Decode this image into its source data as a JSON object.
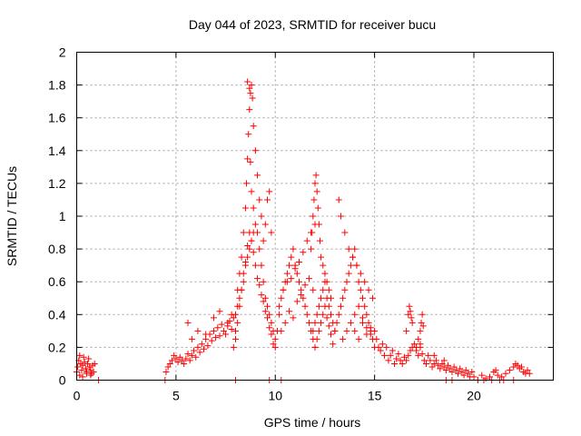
{
  "chart_data": {
    "type": "scatter",
    "title": "Day 044 of 2023, SRMTID for receiver bucu",
    "xlabel": "GPS time / hours",
    "ylabel": "SRMTID / TECUs",
    "xlim": [
      0,
      24
    ],
    "ylim": [
      0,
      2
    ],
    "xticks": [
      0,
      5,
      10,
      15,
      20
    ],
    "xtick_labels": [
      "0",
      "5",
      "10",
      "15",
      "20"
    ],
    "yticks": [
      0,
      0.2,
      0.4,
      0.6,
      0.8,
      1.0,
      1.2,
      1.4,
      1.6,
      1.8,
      2.0
    ],
    "ytick_labels": [
      "0",
      "0.2",
      "0.4",
      "0.6",
      "0.8",
      "1",
      "1.2",
      "1.4",
      "1.6",
      "1.8",
      "2"
    ],
    "grid": true,
    "marker": "plus",
    "color": "#ff0000",
    "series": [
      {
        "name": "SRMTID",
        "x": [
          0.0,
          0.05,
          0.1,
          0.15,
          0.2,
          0.25,
          0.3,
          0.35,
          0.4,
          0.45,
          0.5,
          0.55,
          0.6,
          0.65,
          0.7,
          0.75,
          0.8,
          0.85,
          0.9,
          0.15,
          0.3,
          0.5,
          0.7,
          1.1,
          4.45,
          4.5,
          4.6,
          4.7,
          4.8,
          4.9,
          5.0,
          5.1,
          5.2,
          5.3,
          5.4,
          5.5,
          5.6,
          5.7,
          5.8,
          5.9,
          6.0,
          6.1,
          6.2,
          6.3,
          6.4,
          6.5,
          6.6,
          6.7,
          6.8,
          6.9,
          7.0,
          7.1,
          7.2,
          7.3,
          7.4,
          7.5,
          7.6,
          7.7,
          7.8,
          7.9,
          5.6,
          5.8,
          6.1,
          6.5,
          6.9,
          7.2,
          7.6,
          7.8,
          7.9,
          8.0,
          8.1,
          8.2,
          8.3,
          8.4,
          8.5,
          8.6,
          8.7,
          8.8,
          8.9,
          9.0,
          9.1,
          9.2,
          9.3,
          9.4,
          9.5,
          9.6,
          9.7,
          9.8,
          9.9,
          10.0,
          8.0,
          8.1,
          8.2,
          8.3,
          8.4,
          8.5,
          8.55,
          8.6,
          8.65,
          8.7,
          8.75,
          8.8,
          8.85,
          8.9,
          9.0,
          9.1,
          9.2,
          9.3,
          9.4,
          9.5,
          9.6,
          9.7,
          9.8,
          8.0,
          8.1,
          8.2,
          8.3,
          8.4,
          8.5,
          8.6,
          8.7,
          8.8,
          8.9,
          9.0,
          9.1,
          9.2,
          9.3,
          9.4,
          9.5,
          9.6,
          9.7,
          9.8,
          9.9,
          8.6,
          8.7,
          8.75,
          8.8,
          8.9,
          10.0,
          10.1,
          10.2,
          10.3,
          10.4,
          10.5,
          10.6,
          10.7,
          10.8,
          10.9,
          11.0,
          11.1,
          11.2,
          11.3,
          11.4,
          11.5,
          11.6,
          11.7,
          11.8,
          11.9,
          12.0,
          10.2,
          10.4,
          10.6,
          10.8,
          11.0,
          11.2,
          11.4,
          11.6,
          11.8,
          12.0,
          10.3,
          10.5,
          10.7,
          10.9,
          11.1,
          11.3,
          11.5,
          11.7,
          11.9,
          11.8,
          11.85,
          11.9,
          11.95,
          12.0,
          12.05,
          12.1,
          12.15,
          12.2,
          12.25,
          12.3,
          12.4,
          12.5,
          12.6,
          12.7,
          12.8,
          11.9,
          12.0,
          12.1,
          12.2,
          12.3,
          12.4,
          12.5,
          12.6,
          12.7,
          12.8,
          12.9,
          13.0,
          12.0,
          12.1,
          12.2,
          12.3,
          12.4,
          12.5,
          12.6,
          12.7,
          12.8,
          12.9,
          13.0,
          13.1,
          13.2,
          13.3,
          13.4,
          13.5,
          13.6,
          13.7,
          13.8,
          13.9,
          14.0,
          14.1,
          14.2,
          14.3,
          14.4,
          14.5,
          14.6,
          14.7,
          14.8,
          14.9,
          15.0,
          13.2,
          13.3,
          13.5,
          13.7,
          13.9,
          14.1,
          14.3,
          14.5,
          14.7,
          14.9,
          13.4,
          13.6,
          13.8,
          14.0,
          14.2,
          14.4,
          14.6,
          14.8,
          14.0,
          14.2,
          14.4,
          14.6,
          14.8,
          15.0,
          15.1,
          15.2,
          15.3,
          15.4,
          15.5,
          15.6,
          15.7,
          15.8,
          15.9,
          16.0,
          16.1,
          16.2,
          16.3,
          16.4,
          16.5,
          16.6,
          16.7,
          16.8,
          16.9,
          17.0,
          17.1,
          17.2,
          17.3,
          17.4,
          17.5,
          17.6,
          17.7,
          17.8,
          17.9,
          18.0,
          18.1,
          18.2,
          18.3,
          18.4,
          18.5,
          18.6,
          18.7,
          18.8,
          18.9,
          19.0,
          19.1,
          19.2,
          19.3,
          19.4,
          19.5,
          19.6,
          19.7,
          19.8,
          19.9,
          16.6,
          16.7,
          16.75,
          16.8,
          16.85,
          16.9,
          17.3,
          17.35,
          17.4,
          17.45,
          17.1,
          17.2,
          17.3,
          18.0,
          18.5,
          20.0,
          20.2,
          20.4,
          20.6,
          20.8,
          21.0,
          21.1,
          21.2,
          21.4,
          21.6,
          21.8,
          22.0,
          22.1,
          22.2,
          22.3,
          22.4,
          22.5,
          22.6,
          22.7,
          22.8,
          8.0,
          9.7,
          10.3,
          18.6,
          18.9,
          20.2,
          20.5,
          20.9,
          21.3,
          21.5,
          22.0
        ],
        "y": [
          0.05,
          0.08,
          0.12,
          0.15,
          0.1,
          0.06,
          0.09,
          0.14,
          0.11,
          0.07,
          0.05,
          0.1,
          0.13,
          0.08,
          0.06,
          0.04,
          0.09,
          0.05,
          0.1,
          0.03,
          0.02,
          0.04,
          0.03,
          0.0,
          0.0,
          0.05,
          0.08,
          0.1,
          0.12,
          0.15,
          0.13,
          0.11,
          0.14,
          0.12,
          0.1,
          0.13,
          0.16,
          0.12,
          0.15,
          0.18,
          0.14,
          0.2,
          0.17,
          0.22,
          0.19,
          0.25,
          0.21,
          0.28,
          0.24,
          0.3,
          0.26,
          0.32,
          0.27,
          0.34,
          0.3,
          0.28,
          0.33,
          0.36,
          0.31,
          0.38,
          0.35,
          0.25,
          0.3,
          0.28,
          0.38,
          0.42,
          0.35,
          0.4,
          0.2,
          0.3,
          0.45,
          0.5,
          0.55,
          0.6,
          0.7,
          0.75,
          0.8,
          0.85,
          0.9,
          0.95,
          0.9,
          0.8,
          0.7,
          0.6,
          0.5,
          0.45,
          0.4,
          0.35,
          0.3,
          0.25,
          0.4,
          0.55,
          0.65,
          0.75,
          0.9,
          1.05,
          1.2,
          1.35,
          1.5,
          1.65,
          1.75,
          1.8,
          1.72,
          1.55,
          1.4,
          1.25,
          1.1,
          1.0,
          0.85,
          0.95,
          1.1,
          1.15,
          0.9,
          0.25,
          0.35,
          0.45,
          0.55,
          0.65,
          0.72,
          0.82,
          0.9,
          0.85,
          0.78,
          0.7,
          0.62,
          0.58,
          0.52,
          0.48,
          0.42,
          0.38,
          0.32,
          0.28,
          0.22,
          1.82,
          1.78,
          1.33,
          1.15,
          1.05,
          0.2,
          0.3,
          0.4,
          0.5,
          0.55,
          0.6,
          0.65,
          0.7,
          0.75,
          0.8,
          0.7,
          0.65,
          0.6,
          0.55,
          0.5,
          0.45,
          0.4,
          0.35,
          0.3,
          0.25,
          0.2,
          0.45,
          0.55,
          0.6,
          0.62,
          0.68,
          0.72,
          0.78,
          0.85,
          0.9,
          0.95,
          0.3,
          0.35,
          0.42,
          0.38,
          0.48,
          0.52,
          0.58,
          0.62,
          0.55,
          0.8,
          0.9,
          1.0,
          1.1,
          1.2,
          1.25,
          1.15,
          1.05,
          0.95,
          0.85,
          0.75,
          0.7,
          0.65,
          0.6,
          0.55,
          0.5,
          0.3,
          0.35,
          0.4,
          0.45,
          0.5,
          0.55,
          0.6,
          0.5,
          0.45,
          0.4,
          0.35,
          0.3,
          0.2,
          0.25,
          0.3,
          0.35,
          0.4,
          0.45,
          0.38,
          0.33,
          0.28,
          0.22,
          0.3,
          0.35,
          0.4,
          0.45,
          0.5,
          0.55,
          0.6,
          0.65,
          0.7,
          0.75,
          0.8,
          0.7,
          0.6,
          0.55,
          0.5,
          0.45,
          0.4,
          0.35,
          0.3,
          0.25,
          0.2,
          1.1,
          1.0,
          0.9,
          0.8,
          0.75,
          0.7,
          0.65,
          0.6,
          0.55,
          0.5,
          0.25,
          0.3,
          0.35,
          0.4,
          0.45,
          0.38,
          0.32,
          0.28,
          0.3,
          0.25,
          0.35,
          0.28,
          0.32,
          0.3,
          0.25,
          0.2,
          0.18,
          0.22,
          0.15,
          0.2,
          0.12,
          0.15,
          0.18,
          0.1,
          0.13,
          0.16,
          0.12,
          0.1,
          0.14,
          0.12,
          0.15,
          0.18,
          0.2,
          0.22,
          0.18,
          0.15,
          0.2,
          0.16,
          0.12,
          0.1,
          0.15,
          0.12,
          0.08,
          0.1,
          0.12,
          0.09,
          0.07,
          0.1,
          0.08,
          0.06,
          0.09,
          0.07,
          0.05,
          0.08,
          0.06,
          0.04,
          0.07,
          0.05,
          0.03,
          0.06,
          0.04,
          0.02,
          0.05,
          0.3,
          0.4,
          0.45,
          0.42,
          0.38,
          0.35,
          0.3,
          0.35,
          0.4,
          0.33,
          0.2,
          0.25,
          0.22,
          0.15,
          0.12,
          0.02,
          0.0,
          0.03,
          0.01,
          0.02,
          0.05,
          0.06,
          0.03,
          0.02,
          0.04,
          0.06,
          0.08,
          0.1,
          0.09,
          0.07,
          0.08,
          0.05,
          0.04,
          0.06,
          0.04,
          0.0,
          0.0,
          0.0,
          0.0,
          0.0,
          0.0,
          0.0,
          0.0,
          0.0,
          0.0,
          0.0
        ]
      }
    ]
  }
}
